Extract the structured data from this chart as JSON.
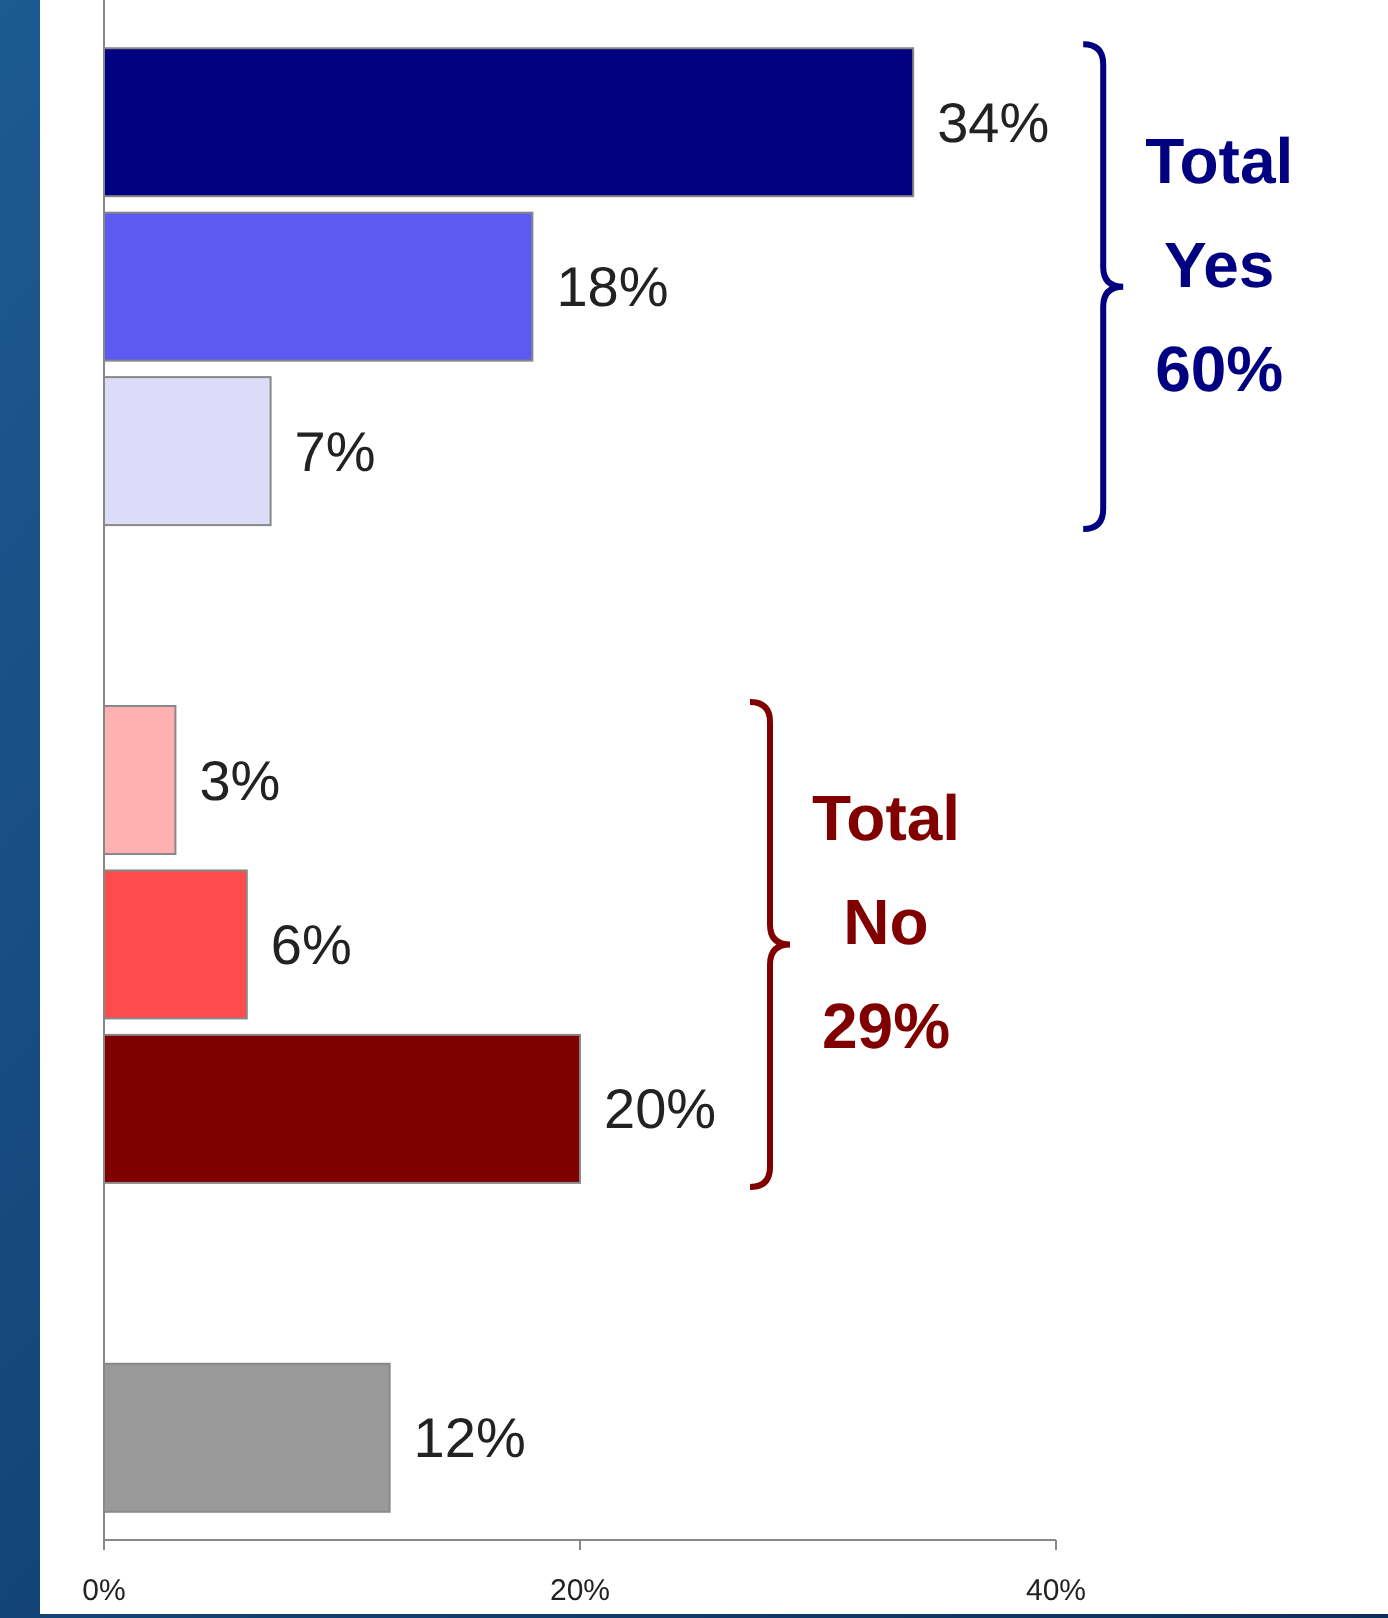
{
  "chart_data": {
    "type": "bar",
    "orientation": "horizontal",
    "categories": [
      null,
      null,
      null,
      null,
      null,
      null,
      null,
      null,
      null
    ],
    "values": [
      34,
      18,
      7,
      null,
      3,
      6,
      20,
      null,
      12
    ],
    "colors": [
      "#000080",
      "#5b5bf0",
      "#dcdcf8",
      null,
      "#ffb0b0",
      "#ff4b4b",
      "#800000",
      null,
      "#999999"
    ],
    "value_labels": [
      "34%",
      "18%",
      "7%",
      null,
      "3%",
      "6%",
      "20%",
      null,
      "12%"
    ],
    "xlim": [
      0,
      40
    ],
    "xticks": [
      {
        "value": 0,
        "label": "0%"
      },
      {
        "value": 20,
        "label": "20%"
      },
      {
        "value": 40,
        "label": "40%"
      }
    ],
    "grid": false,
    "annotations": [
      "Total Yes 60%",
      "Total No 29%"
    ]
  }
}
